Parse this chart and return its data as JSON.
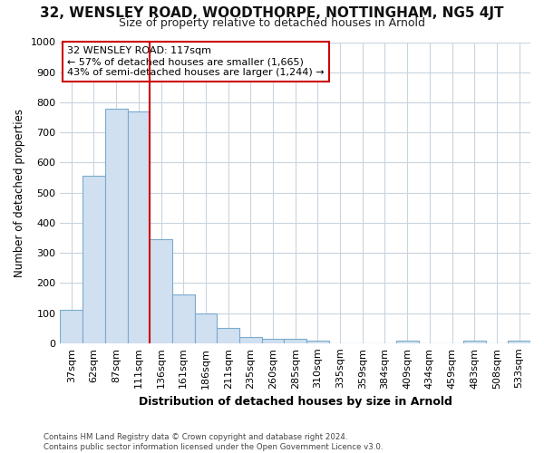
{
  "title1": "32, WENSLEY ROAD, WOODTHORPE, NOTTINGHAM, NG5 4JT",
  "title2": "Size of property relative to detached houses in Arnold",
  "xlabel": "Distribution of detached houses by size in Arnold",
  "ylabel": "Number of detached properties",
  "categories": [
    "37sqm",
    "62sqm",
    "87sqm",
    "111sqm",
    "136sqm",
    "161sqm",
    "186sqm",
    "211sqm",
    "235sqm",
    "260sqm",
    "285sqm",
    "310sqm",
    "335sqm",
    "359sqm",
    "384sqm",
    "409sqm",
    "434sqm",
    "459sqm",
    "483sqm",
    "508sqm",
    "533sqm"
  ],
  "values": [
    112,
    557,
    778,
    770,
    345,
    163,
    98,
    50,
    20,
    13,
    13,
    7,
    0,
    0,
    0,
    8,
    0,
    0,
    8,
    0,
    8
  ],
  "bar_color": "#d0e0f0",
  "bar_edge_color": "#7aaacc",
  "vline_x_index": 3,
  "vline_color": "#cc0000",
  "annotation_text": "32 WENSLEY ROAD: 117sqm\n← 57% of detached houses are smaller (1,665)\n43% of semi-detached houses are larger (1,244) →",
  "annotation_box_color": "#ffffff",
  "annotation_box_edge": "#cc0000",
  "fig_background": "#ffffff",
  "plot_background": "#ffffff",
  "grid_color": "#c8d4e0",
  "footer": "Contains HM Land Registry data © Crown copyright and database right 2024.\nContains public sector information licensed under the Open Government Licence v3.0.",
  "ylim": [
    0,
    1000
  ],
  "yticks": [
    0,
    100,
    200,
    300,
    400,
    500,
    600,
    700,
    800,
    900,
    1000
  ],
  "title1_fontsize": 11,
  "title2_fontsize": 9
}
